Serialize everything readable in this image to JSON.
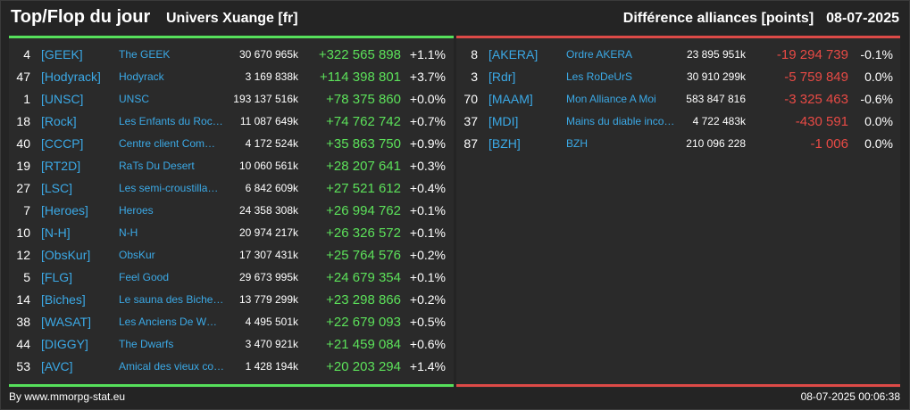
{
  "header": {
    "title": "Top/Flop du jour",
    "universe": "Univers Xuange [fr]",
    "metric": "Différence alliances [points]",
    "date": "08-07-2025"
  },
  "colors": {
    "positive": "#5ce15a",
    "negative": "#e84a45",
    "link": "#3ba9e6",
    "top_bar": "#56e05b",
    "flop_bar": "#dd4a47"
  },
  "top": [
    {
      "rank": "4",
      "tag": "[GEEK]",
      "name": "The GEEK",
      "points": "30 670 965k",
      "diff": "+322 565 898",
      "pct": "+1.1%"
    },
    {
      "rank": "47",
      "tag": "[Hodyrack]",
      "name": "Hodyrack",
      "points": "3 169 838k",
      "diff": "+114 398 801",
      "pct": "+3.7%"
    },
    {
      "rank": "1",
      "tag": "[UNSC]",
      "name": "UNSC",
      "points": "193 137 516k",
      "diff": "+78 375 860",
      "pct": "+0.0%"
    },
    {
      "rank": "18",
      "tag": "[Rock]",
      "name": "Les Enfants du Roc…",
      "points": "11 087 649k",
      "diff": "+74 762 742",
      "pct": "+0.7%"
    },
    {
      "rank": "40",
      "tag": "[CCCP]",
      "name": "Centre client Com…",
      "points": "4 172 524k",
      "diff": "+35 863 750",
      "pct": "+0.9%"
    },
    {
      "rank": "19",
      "tag": "[RT2D]",
      "name": "RaTs Du Desert",
      "points": "10 060 561k",
      "diff": "+28 207 641",
      "pct": "+0.3%"
    },
    {
      "rank": "27",
      "tag": "[LSC]",
      "name": "Les semi-croustilla…",
      "points": "6 842 609k",
      "diff": "+27 521 612",
      "pct": "+0.4%"
    },
    {
      "rank": "7",
      "tag": "[Heroes]",
      "name": "Heroes",
      "points": "24 358 308k",
      "diff": "+26 994 762",
      "pct": "+0.1%"
    },
    {
      "rank": "10",
      "tag": "[N-H]",
      "name": "N-H",
      "points": "20 974 217k",
      "diff": "+26 326 572",
      "pct": "+0.1%"
    },
    {
      "rank": "12",
      "tag": "[ObsKur]",
      "name": "ObsKur",
      "points": "17 307 431k",
      "diff": "+25 764 576",
      "pct": "+0.2%"
    },
    {
      "rank": "5",
      "tag": "[FLG]",
      "name": "Feel Good",
      "points": "29 673 995k",
      "diff": "+24 679 354",
      "pct": "+0.1%"
    },
    {
      "rank": "14",
      "tag": "[Biches]",
      "name": "Le sauna des Biche…",
      "points": "13 779 299k",
      "diff": "+23 298 866",
      "pct": "+0.2%"
    },
    {
      "rank": "38",
      "tag": "[WASAT]",
      "name": "Les Anciens De W…",
      "points": "4 495 501k",
      "diff": "+22 679 093",
      "pct": "+0.5%"
    },
    {
      "rank": "44",
      "tag": "[DIGGY]",
      "name": "The Dwarfs",
      "points": "3 470 921k",
      "diff": "+21 459 084",
      "pct": "+0.6%"
    },
    {
      "rank": "53",
      "tag": "[AVC]",
      "name": "Amical des vieux co…",
      "points": "1 428 194k",
      "diff": "+20 203 294",
      "pct": "+1.4%"
    }
  ],
  "flop": [
    {
      "rank": "8",
      "tag": "[AKERA]",
      "name": "Ordre AKERA",
      "points": "23 895 951k",
      "diff": "-19 294 739",
      "pct": "-0.1%"
    },
    {
      "rank": "3",
      "tag": "[Rdr]",
      "name": "Les RoDeUrS",
      "points": "30 910 299k",
      "diff": "-5 759 849",
      "pct": "0.0%"
    },
    {
      "rank": "70",
      "tag": "[MAAM]",
      "name": "Mon Alliance A Moi",
      "points": "583 847 816",
      "diff": "-3 325 463",
      "pct": "-0.6%"
    },
    {
      "rank": "37",
      "tag": "[MDI]",
      "name": "Mains du diable inco…",
      "points": "4 722 483k",
      "diff": "-430 591",
      "pct": "0.0%"
    },
    {
      "rank": "87",
      "tag": "[BZH]",
      "name": "BZH",
      "points": "210 096 228",
      "diff": "-1 006",
      "pct": "0.0%"
    }
  ],
  "footer": {
    "source": "By www.mmorpg-stat.eu",
    "timestamp": "08-07-2025 00:06:38"
  }
}
